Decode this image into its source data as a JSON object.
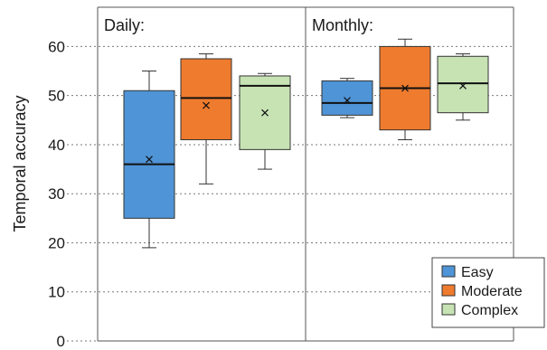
{
  "chart_data": {
    "type": "box",
    "ylabel": "Temporal accuracy",
    "ylim": [
      0,
      68
    ],
    "yticks": [
      0,
      10,
      20,
      30,
      40,
      50,
      60
    ],
    "grid": "horizontal-dotted",
    "legend_placement": "bottom-right",
    "series": [
      {
        "name": "Easy",
        "color": "#4f94d6"
      },
      {
        "name": "Moderate",
        "color": "#ee7b2e"
      },
      {
        "name": "Complex",
        "color": "#c7e3b4"
      }
    ],
    "panels": [
      {
        "label": "Daily:",
        "boxes": [
          {
            "series": "Easy",
            "min": 19,
            "q1": 25,
            "median": 36,
            "q3": 51,
            "max": 55,
            "mean": 37
          },
          {
            "series": "Moderate",
            "min": 32,
            "q1": 41,
            "median": 49.5,
            "q3": 57.5,
            "max": 58.5,
            "mean": 48
          },
          {
            "series": "Complex",
            "min": 35,
            "q1": 39,
            "median": 52,
            "q3": 54,
            "max": 54.5,
            "mean": 46.5
          }
        ]
      },
      {
        "label": "Monthly:",
        "boxes": [
          {
            "series": "Easy",
            "min": 45.5,
            "q1": 46,
            "median": 48.5,
            "q3": 53,
            "max": 53.5,
            "mean": 49
          },
          {
            "series": "Moderate",
            "min": 41,
            "q1": 43,
            "median": 51.5,
            "q3": 60,
            "max": 61.5,
            "mean": 51.5
          },
          {
            "series": "Complex",
            "min": 45,
            "q1": 46.5,
            "median": 52.5,
            "q3": 58,
            "max": 58.5,
            "mean": 52
          }
        ]
      }
    ]
  }
}
